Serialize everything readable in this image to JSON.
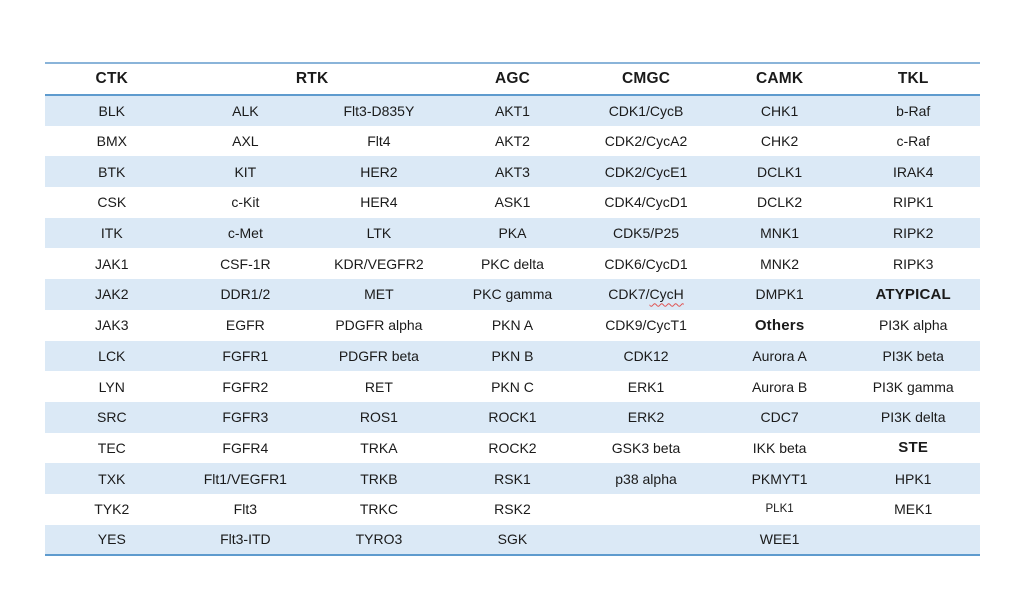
{
  "colors": {
    "page_background": "#ffffff",
    "row_stripe_fill": "#dbe9f6",
    "outer_top_border": "#8ab4d9",
    "header_bottom_border": "#5e9bce",
    "table_bottom_border": "#5e9bce",
    "text": "#1a1a1a",
    "spellcheck_underline": "#e05252"
  },
  "table": {
    "headers": [
      {
        "label": "CTK",
        "span": 1
      },
      {
        "label": "RTK",
        "span": 2
      },
      {
        "label": "AGC",
        "span": 1
      },
      {
        "label": "CMGC",
        "span": 1
      },
      {
        "label": "CAMK",
        "span": 1
      },
      {
        "label": "TKL",
        "span": 1
      }
    ],
    "rows": [
      [
        "BLK",
        "ALK",
        "Flt3-D835Y",
        "AKT1",
        "CDK1/CycB",
        "CHK1",
        "b-Raf"
      ],
      [
        "BMX",
        "AXL",
        "Flt4",
        "AKT2",
        "CDK2/CycA2",
        "CHK2",
        "c-Raf"
      ],
      [
        "BTK",
        "KIT",
        "HER2",
        "AKT3",
        "CDK2/CycE1",
        "DCLK1",
        "IRAK4"
      ],
      [
        "CSK",
        "c-Kit",
        "HER4",
        "ASK1",
        "CDK4/CycD1",
        "DCLK2",
        "RIPK1"
      ],
      [
        "ITK",
        "c-Met",
        "LTK",
        "PKA",
        "CDK5/P25",
        "MNK1",
        "RIPK2"
      ],
      [
        "JAK1",
        "CSF-1R",
        "KDR/VEGFR2",
        "PKC delta",
        "CDK6/CycD1",
        "MNK2",
        "RIPK3"
      ],
      [
        "JAK2",
        "DDR1/2",
        "MET",
        "PKC gamma",
        {
          "text": "CDK7/CycH",
          "wavy_part": "CycH"
        },
        "DMPK1",
        {
          "text": "ATYPICAL",
          "bold": true
        }
      ],
      [
        "JAK3",
        "EGFR",
        "PDGFR alpha",
        "PKN A",
        "CDK9/CycT1",
        {
          "text": "Others",
          "bold": true
        },
        "PI3K alpha"
      ],
      [
        "LCK",
        "FGFR1",
        "PDGFR beta",
        "PKN B",
        "CDK12",
        "Aurora A",
        "PI3K beta"
      ],
      [
        "LYN",
        "FGFR2",
        "RET",
        "PKN C",
        "ERK1",
        "Aurora B",
        "PI3K gamma"
      ],
      [
        "SRC",
        "FGFR3",
        "ROS1",
        "ROCK1",
        "ERK2",
        "CDC7",
        "PI3K delta"
      ],
      [
        "TEC",
        "FGFR4",
        "TRKA",
        "ROCK2",
        "GSK3 beta",
        "IKK beta",
        {
          "text": "STE",
          "bold": true
        }
      ],
      [
        "TXK",
        "Flt1/VEGFR1",
        "TRKB",
        "RSK1",
        "p38 alpha",
        "PKMYT1",
        "HPK1"
      ],
      [
        "TYK2",
        "Flt3",
        "TRKC",
        "RSK2",
        "",
        {
          "text": "PLK1",
          "small": true
        },
        "MEK1"
      ],
      [
        "YES",
        "Flt3-ITD",
        "TYRO3",
        "SGK",
        "",
        "WEE1",
        ""
      ]
    ]
  }
}
